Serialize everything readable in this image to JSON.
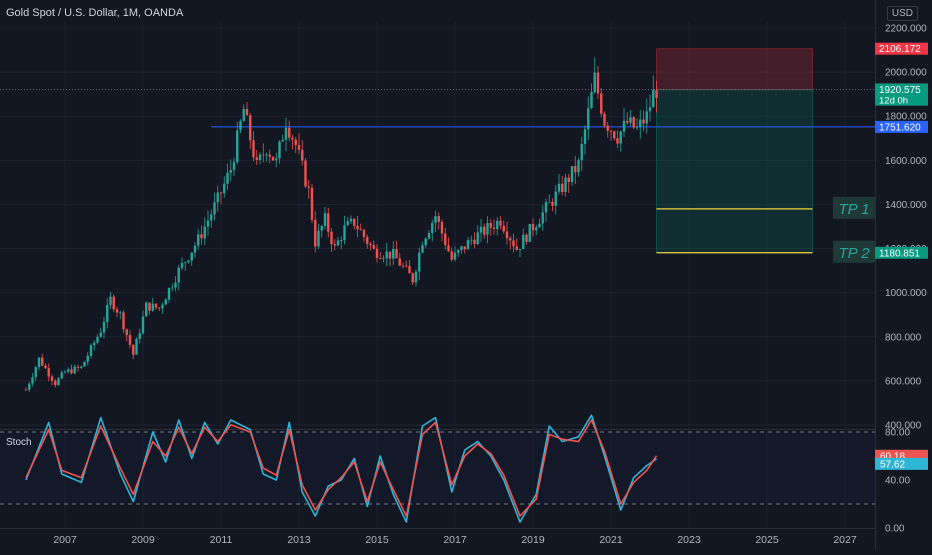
{
  "header": {
    "title": "Gold Spot / U.S. Dollar, 1M, OANDA",
    "currency": "USD"
  },
  "indicator": {
    "name": "Stoch"
  },
  "chart_data": [
    {
      "type": "candlestick",
      "title": "Gold Spot / U.S. Dollar, 1M, OANDA",
      "x_axis": {
        "type": "date",
        "tick_labels": [
          "2007",
          "2009",
          "2011",
          "2013",
          "2015",
          "2017",
          "2019",
          "2021",
          "2023",
          "2025",
          "2027"
        ],
        "range": [
          "2006",
          "2027"
        ]
      },
      "y_axis": {
        "tick_labels": [
          "2200.000",
          "2000.000",
          "1800.000",
          "1600.000",
          "1400.000",
          "1200.000",
          "1000.000",
          "800.000",
          "600.000",
          "400.000"
        ],
        "range": [
          400,
          2200
        ],
        "position": "right"
      },
      "price_path": [
        [
          "2006-01",
          560
        ],
        [
          "2006-05",
          700
        ],
        [
          "2006-10",
          590
        ],
        [
          "2007-01",
          640
        ],
        [
          "2007-06",
          660
        ],
        [
          "2007-12",
          830
        ],
        [
          "2008-03",
          970
        ],
        [
          "2008-06",
          900
        ],
        [
          "2008-10",
          720
        ],
        [
          "2009-02",
          940
        ],
        [
          "2009-06",
          930
        ],
        [
          "2009-12",
          1100
        ],
        [
          "2010-06",
          1240
        ],
        [
          "2010-12",
          1420
        ],
        [
          "2011-04",
          1560
        ],
        [
          "2011-08",
          1830
        ],
        [
          "2011-12",
          1570
        ],
        [
          "2012-03",
          1660
        ],
        [
          "2012-06",
          1590
        ],
        [
          "2012-09",
          1780
        ],
        [
          "2012-12",
          1670
        ],
        [
          "2013-04",
          1460
        ],
        [
          "2013-06",
          1230
        ],
        [
          "2013-09",
          1330
        ],
        [
          "2013-12",
          1200
        ],
        [
          "2014-03",
          1290
        ],
        [
          "2014-06",
          1320
        ],
        [
          "2014-12",
          1190
        ],
        [
          "2015-06",
          1170
        ],
        [
          "2015-12",
          1060
        ],
        [
          "2016-03",
          1240
        ],
        [
          "2016-07",
          1350
        ],
        [
          "2016-12",
          1150
        ],
        [
          "2017-06",
          1240
        ],
        [
          "2017-12",
          1300
        ],
        [
          "2018-03",
          1330
        ],
        [
          "2018-08",
          1200
        ],
        [
          "2018-12",
          1280
        ],
        [
          "2019-06",
          1400
        ],
        [
          "2019-12",
          1520
        ],
        [
          "2020-03",
          1580
        ],
        [
          "2020-08",
          1970
        ],
        [
          "2020-11",
          1780
        ],
        [
          "2021-03",
          1710
        ],
        [
          "2021-06",
          1770
        ],
        [
          "2021-09",
          1740
        ],
        [
          "2021-12",
          1800
        ],
        [
          "2022-02",
          1900
        ],
        [
          "2022-03",
          1921
        ]
      ],
      "horizontal_lines": [
        {
          "label": "1751.620",
          "value": 1751.62,
          "color": "#2962ff"
        }
      ],
      "price_labels": [
        {
          "label": "2106.172",
          "value": 2106.172,
          "color": "#f23645"
        },
        {
          "label": "1921.429",
          "value": 1921.429,
          "color": "#787b86"
        },
        {
          "label": "1920.575",
          "value": 1920.575,
          "sublabel": "12d 0h",
          "color": "#089981"
        },
        {
          "label": "1751.620",
          "value": 1751.62,
          "color": "#2962ff"
        },
        {
          "label": "1180.851",
          "value": 1180.851,
          "color": "#089981"
        }
      ],
      "position_tool": {
        "x_start": "2022-03",
        "x_end": "2026-03",
        "entry": 1920.575,
        "stop": 2106.172,
        "target": 1180.851,
        "risk_color": "#f23645",
        "reward_color": "#089981"
      },
      "targets": [
        {
          "label": "TP 1",
          "value": 1380
        },
        {
          "label": "TP 2",
          "value": 1180.851
        }
      ],
      "colors": {
        "up": "#26a69a",
        "down": "#ef5350"
      }
    },
    {
      "type": "line",
      "title": "Stoch",
      "y_axis": {
        "tick_labels": [
          "80.00",
          "40.00",
          "0.00"
        ],
        "range": [
          0,
          100
        ],
        "bands": [
          80,
          20
        ]
      },
      "series": [
        {
          "name": "",
          "color": "#2fb5d6",
          "values": [
            [
              "2006-01",
              40
            ],
            [
              "2006-08",
              88
            ],
            [
              "2006-12",
              45
            ],
            [
              "2007-06",
              38
            ],
            [
              "2007-12",
              92
            ],
            [
              "2008-06",
              45
            ],
            [
              "2008-10",
              22
            ],
            [
              "2009-04",
              80
            ],
            [
              "2009-08",
              55
            ],
            [
              "2009-12",
              90
            ],
            [
              "2010-04",
              58
            ],
            [
              "2010-08",
              88
            ],
            [
              "2010-12",
              70
            ],
            [
              "2011-04",
              90
            ],
            [
              "2011-10",
              82
            ],
            [
              "2012-02",
              45
            ],
            [
              "2012-06",
              40
            ],
            [
              "2012-10",
              88
            ],
            [
              "2013-02",
              30
            ],
            [
              "2013-06",
              10
            ],
            [
              "2013-10",
              35
            ],
            [
              "2014-02",
              40
            ],
            [
              "2014-06",
              58
            ],
            [
              "2014-10",
              18
            ],
            [
              "2015-02",
              60
            ],
            [
              "2015-06",
              28
            ],
            [
              "2015-10",
              5
            ],
            [
              "2016-03",
              85
            ],
            [
              "2016-07",
              92
            ],
            [
              "2016-12",
              30
            ],
            [
              "2017-04",
              65
            ],
            [
              "2017-08",
              72
            ],
            [
              "2017-12",
              60
            ],
            [
              "2018-04",
              40
            ],
            [
              "2018-09",
              5
            ],
            [
              "2019-02",
              28
            ],
            [
              "2019-06",
              85
            ],
            [
              "2019-10",
              72
            ],
            [
              "2020-03",
              76
            ],
            [
              "2020-07",
              94
            ],
            [
              "2020-11",
              60
            ],
            [
              "2021-04",
              15
            ],
            [
              "2021-08",
              42
            ],
            [
              "2021-12",
              52
            ],
            [
              "2022-03",
              57.62
            ]
          ]
        },
        {
          "name": "",
          "color": "#ef5350",
          "values": [
            [
              "2006-01",
              42
            ],
            [
              "2006-08",
              82
            ],
            [
              "2006-12",
              48
            ],
            [
              "2007-06",
              42
            ],
            [
              "2007-12",
              85
            ],
            [
              "2008-06",
              50
            ],
            [
              "2008-10",
              28
            ],
            [
              "2009-04",
              72
            ],
            [
              "2009-08",
              60
            ],
            [
              "2009-12",
              84
            ],
            [
              "2010-04",
              62
            ],
            [
              "2010-08",
              84
            ],
            [
              "2010-12",
              72
            ],
            [
              "2011-04",
              86
            ],
            [
              "2011-10",
              80
            ],
            [
              "2012-02",
              50
            ],
            [
              "2012-06",
              44
            ],
            [
              "2012-10",
              82
            ],
            [
              "2013-02",
              36
            ],
            [
              "2013-06",
              15
            ],
            [
              "2013-10",
              32
            ],
            [
              "2014-02",
              42
            ],
            [
              "2014-06",
              55
            ],
            [
              "2014-10",
              22
            ],
            [
              "2015-02",
              55
            ],
            [
              "2015-06",
              32
            ],
            [
              "2015-10",
              10
            ],
            [
              "2016-03",
              78
            ],
            [
              "2016-07",
              88
            ],
            [
              "2016-12",
              36
            ],
            [
              "2017-04",
              60
            ],
            [
              "2017-08",
              70
            ],
            [
              "2017-12",
              62
            ],
            [
              "2018-04",
              44
            ],
            [
              "2018-09",
              10
            ],
            [
              "2019-02",
              24
            ],
            [
              "2019-06",
              78
            ],
            [
              "2019-10",
              74
            ],
            [
              "2020-03",
              72
            ],
            [
              "2020-07",
              90
            ],
            [
              "2020-11",
              64
            ],
            [
              "2021-04",
              20
            ],
            [
              "2021-08",
              38
            ],
            [
              "2021-12",
              48
            ],
            [
              "2022-03",
              60.18
            ]
          ]
        }
      ],
      "value_labels": [
        {
          "label": "60.18",
          "value": 60.18,
          "color": "#ef5350"
        },
        {
          "label": "57.62",
          "value": 57.62,
          "color": "#2fb5d6"
        }
      ]
    }
  ]
}
